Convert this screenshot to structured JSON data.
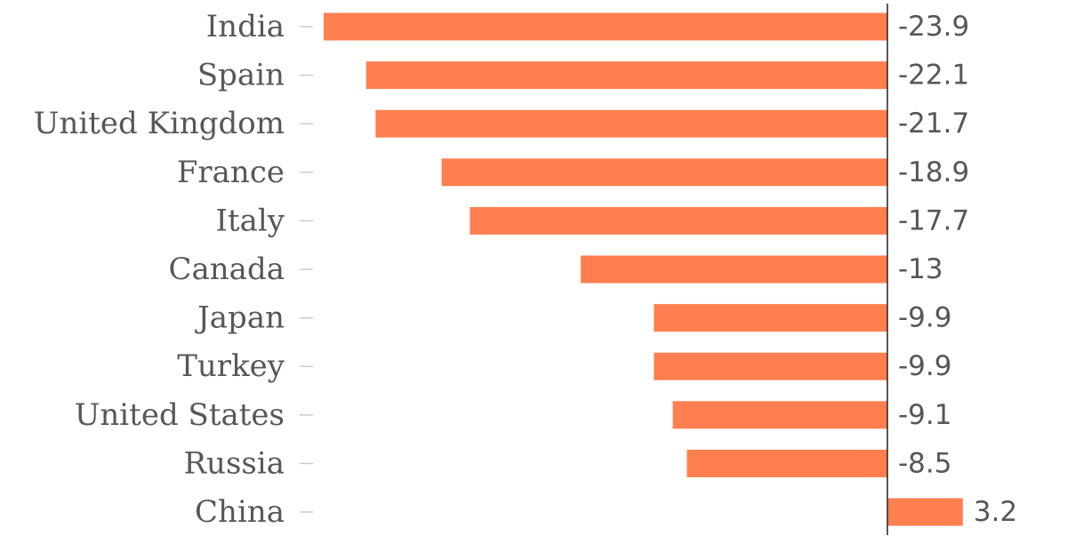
{
  "chart_data": {
    "type": "bar",
    "orientation": "horizontal",
    "categories": [
      "India",
      "Spain",
      "United Kingdom",
      "France",
      "Italy",
      "Canada",
      "Japan",
      "Turkey",
      "United States",
      "Russia",
      "China"
    ],
    "values": [
      -23.9,
      -22.1,
      -21.7,
      -18.9,
      -17.7,
      -13,
      -9.9,
      -9.9,
      -9.1,
      -8.5,
      3.2
    ],
    "value_labels": [
      "-23.9",
      "-22.1",
      "-21.7",
      "-18.9",
      "-17.7",
      "-13",
      "-9.9",
      "-9.9",
      "-9.1",
      "-8.5",
      "3.2"
    ],
    "xlim": [
      -23.9,
      3.2
    ],
    "grid": false,
    "legend": "none",
    "bar_color": "#ff7f50",
    "axis_color": "#222222",
    "text_color": "#575757"
  }
}
